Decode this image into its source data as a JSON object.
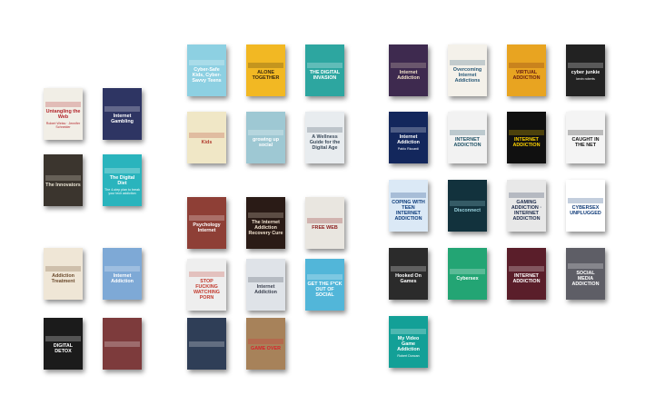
{
  "books": [
    {
      "id": "b1",
      "title": "Untangling the Web",
      "subtitle": "Robert Weiss · Jennifer Schneider",
      "bg": "#f1eee6",
      "fg": "#b3262c"
    },
    {
      "id": "b2",
      "title": "Internet Gambling",
      "subtitle": "",
      "bg": "#2e3563",
      "fg": "#ffffff"
    },
    {
      "id": "b3",
      "title": "The Innovators",
      "subtitle": "",
      "bg": "#3b352e",
      "fg": "#e8e2d2"
    },
    {
      "id": "b4",
      "title": "The Digital Diet",
      "subtitle": "The 4-step plan to break your tech addiction",
      "bg": "#2ab4bd",
      "fg": "#ffffff"
    },
    {
      "id": "b5",
      "title": "Addiction Treatment",
      "subtitle": "",
      "bg": "#efe6d6",
      "fg": "#6b4a2c"
    },
    {
      "id": "b6",
      "title": "Internet Addiction",
      "subtitle": "",
      "bg": "#7ea9d6",
      "fg": "#ffffff"
    },
    {
      "id": "b7",
      "title": "DIGITAL DETOX",
      "subtitle": "",
      "bg": "#1b1b1b",
      "fg": "#ffffff"
    },
    {
      "id": "b8",
      "title": "",
      "subtitle": "",
      "bg": "#7d3b3c",
      "fg": "#ffffff"
    },
    {
      "id": "c1",
      "title": "Cyber-Safe Kids, Cyber-Savvy Teens",
      "subtitle": "",
      "bg": "#8dd0e2",
      "fg": "#ffffff"
    },
    {
      "id": "c2",
      "title": "ALONE TOGETHER",
      "subtitle": "",
      "bg": "#f2b823",
      "fg": "#3b2a10"
    },
    {
      "id": "c3",
      "title": "THE DIGITAL INVASION",
      "subtitle": "",
      "bg": "#2da6a0",
      "fg": "#ffffff"
    },
    {
      "id": "c4",
      "title": "Kids",
      "subtitle": "",
      "bg": "#f0e7c6",
      "fg": "#b03a2e"
    },
    {
      "id": "c5",
      "title": "growing up social",
      "subtitle": "",
      "bg": "#9ec8d3",
      "fg": "#ffffff"
    },
    {
      "id": "c6",
      "title": "A Wellness Guide for the Digital Age",
      "subtitle": "",
      "bg": "#e8ecef",
      "fg": "#3a4a5a"
    },
    {
      "id": "c7",
      "title": "Psychology Internet",
      "subtitle": "",
      "bg": "#8e3f36",
      "fg": "#ffffff"
    },
    {
      "id": "c8",
      "title": "The Internet Addiction Recovery Cure",
      "subtitle": "",
      "bg": "#2a1b16",
      "fg": "#f2e3d0"
    },
    {
      "id": "c9",
      "title": "FREE WEB",
      "subtitle": "",
      "bg": "#e9e6e0",
      "fg": "#8b1c1c"
    },
    {
      "id": "c10",
      "title": "STOP FUCKING WATCHING PORN",
      "subtitle": "",
      "bg": "#eeeeee",
      "fg": "#c23b2f"
    },
    {
      "id": "c11",
      "title": "Internet Addiction",
      "subtitle": "",
      "bg": "#dfe3e8",
      "fg": "#3c4250"
    },
    {
      "id": "c12",
      "title": "GET THE F*CK OUT OF SOCIAL",
      "subtitle": "",
      "bg": "#52b6d9",
      "fg": "#ffffff"
    },
    {
      "id": "c13",
      "title": "",
      "subtitle": "",
      "bg": "#2f3e57",
      "fg": "#ffffff"
    },
    {
      "id": "c14",
      "title": "GAME OVER",
      "subtitle": "",
      "bg": "#a7825a",
      "fg": "#d8232a"
    },
    {
      "id": "d1",
      "title": "Internet Addiction",
      "subtitle": "",
      "bg": "#3e2a4f",
      "fg": "#f0e0c8"
    },
    {
      "id": "d2",
      "title": "Overcoming Internet Addictions",
      "subtitle": "",
      "bg": "#f4f1ea",
      "fg": "#2a5a78"
    },
    {
      "id": "d3",
      "title": "VIRTUAL ADDICTION",
      "subtitle": "",
      "bg": "#e8a421",
      "fg": "#6a1e12"
    },
    {
      "id": "d4",
      "title": "cyber junkie",
      "subtitle": "kevin roberts",
      "bg": "#222222",
      "fg": "#ffffff"
    },
    {
      "id": "d5",
      "title": "Internet Addiction",
      "subtitle": "Pablo Riccardi",
      "bg": "#13275c",
      "fg": "#ffffff"
    },
    {
      "id": "d6",
      "title": "INTERNET ADDICTION",
      "subtitle": "",
      "bg": "#f2f2f2",
      "fg": "#1c4f63"
    },
    {
      "id": "d7",
      "title": "INTERNET ADDICTION",
      "subtitle": "",
      "bg": "#101010",
      "fg": "#ffd400"
    },
    {
      "id": "d8",
      "title": "CAUGHT IN THE NET",
      "subtitle": "",
      "bg": "#f4f4f4",
      "fg": "#111111"
    },
    {
      "id": "d9",
      "title": "COPING WITH TEEN INTERNET ADDICTION",
      "subtitle": "",
      "bg": "#dbe9f6",
      "fg": "#0b3a7a"
    },
    {
      "id": "d10",
      "title": "Disconnect",
      "subtitle": "",
      "bg": "#12323d",
      "fg": "#9fd7e3"
    },
    {
      "id": "d11",
      "title": "GAMING ADDICTION · INTERNET ADDICTION",
      "subtitle": "",
      "bg": "#e8e8e8",
      "fg": "#1c2a4a"
    },
    {
      "id": "d12",
      "title": "CYBERSEX UNPLUGGED",
      "subtitle": "",
      "bg": "#ffffff",
      "fg": "#0e3a78"
    },
    {
      "id": "d13",
      "title": "Hooked On Games",
      "subtitle": "",
      "bg": "#2b2b2b",
      "fg": "#ffffff"
    },
    {
      "id": "d14",
      "title": "Cybersex",
      "subtitle": "",
      "bg": "#23a574",
      "fg": "#ffffff"
    },
    {
      "id": "d15",
      "title": "INTERNET ADDICTION",
      "subtitle": "",
      "bg": "#5a1e2a",
      "fg": "#ffffff"
    },
    {
      "id": "d16",
      "title": "SOCIAL MEDIA ADDICTION",
      "subtitle": "",
      "bg": "#5e5e66",
      "fg": "#ffffff"
    },
    {
      "id": "d17",
      "title": "My Video Game Addiction",
      "subtitle": "Robert Duncan",
      "bg": "#13a097",
      "fg": "#ffffff"
    }
  ]
}
